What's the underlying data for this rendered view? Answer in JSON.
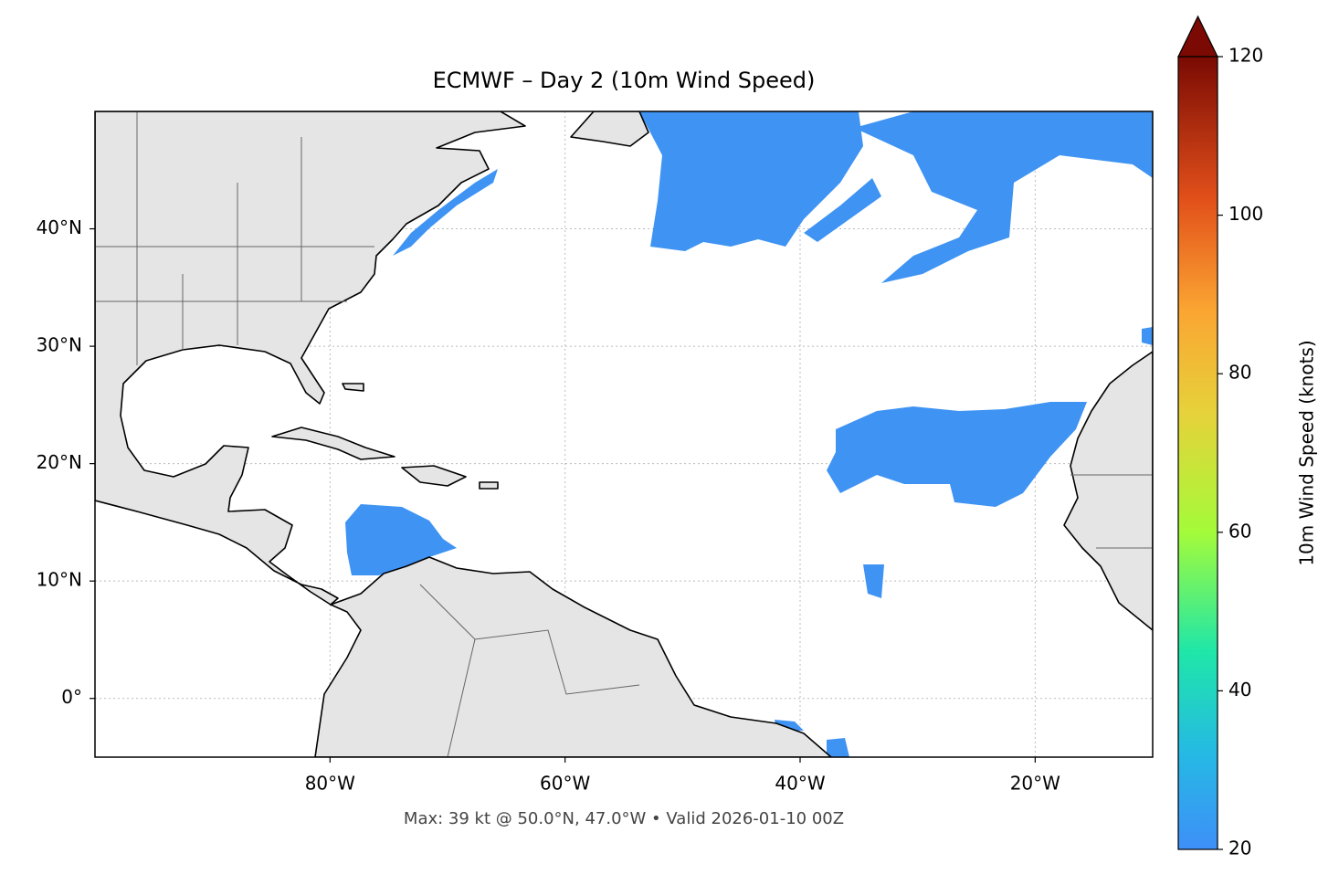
{
  "title": "ECMWF – Day 2 (10m Wind Speed)",
  "footnote": "Max: 39 kt @ 50.0°N, 47.0°W • Valid 2026-01-10 00Z",
  "map": {
    "xlim": [
      -100,
      -10
    ],
    "ylim": [
      -5,
      50
    ],
    "xticks": [
      {
        "value": -80,
        "label": "80°W"
      },
      {
        "value": -60,
        "label": "60°W"
      },
      {
        "value": -40,
        "label": "40°W"
      },
      {
        "value": -20,
        "label": "20°W"
      }
    ],
    "yticks": [
      {
        "value": 0,
        "label": "0°"
      },
      {
        "value": 10,
        "label": "10°N"
      },
      {
        "value": 20,
        "label": "20°N"
      },
      {
        "value": 30,
        "label": "30°N"
      },
      {
        "value": 40,
        "label": "40°N"
      }
    ],
    "grid": true
  },
  "colorbar": {
    "label": "10m Wind Speed (knots)",
    "lim": [
      20,
      120
    ],
    "ticks": [
      20,
      40,
      60,
      80,
      100,
      120
    ]
  }
}
